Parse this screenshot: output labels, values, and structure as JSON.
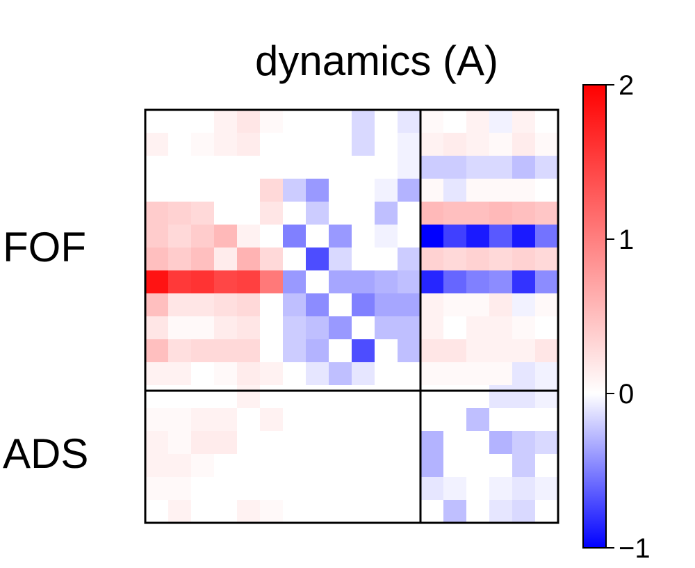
{
  "chart_data": {
    "type": "heatmap",
    "title": "dynamics (A)",
    "row_groups": [
      {
        "label": "FOF",
        "size": 12
      },
      {
        "label": "ADS",
        "size": 6
      }
    ],
    "col_groups": [
      {
        "label": "",
        "size": 12
      },
      {
        "label": "",
        "size": 6
      }
    ],
    "colorbar": {
      "vmin": -1,
      "vmax": 2,
      "ticks": [
        2,
        1,
        0,
        -1
      ],
      "tick_labels": [
        "2",
        "1",
        "0",
        "−1"
      ],
      "colormap": "bwr",
      "low_color": "#0000ff",
      "mid_color": "#ffffff",
      "high_color": "#ff0000"
    },
    "matrix": [
      [
        0,
        0,
        0,
        0.1,
        0.2,
        0.05,
        0,
        0,
        0,
        -0.15,
        0,
        -0.1,
        0.05,
        0,
        0.1,
        -0.05,
        0.1,
        0
      ],
      [
        0.1,
        0,
        0.05,
        0.1,
        0.15,
        0,
        0,
        0,
        0,
        -0.15,
        0,
        -0.05,
        0.1,
        0.15,
        0.1,
        0.05,
        0.15,
        0.05
      ],
      [
        0,
        0,
        0,
        0,
        0,
        0,
        0,
        0,
        0,
        0,
        0,
        -0.05,
        -0.2,
        -0.2,
        -0.15,
        -0.15,
        -0.25,
        -0.15
      ],
      [
        0,
        0,
        0,
        0,
        0,
        0.3,
        -0.2,
        -0.4,
        0,
        0,
        -0.05,
        -0.3,
        0.05,
        -0.1,
        0.05,
        0.05,
        0.05,
        0
      ],
      [
        0.4,
        0.35,
        0.3,
        0,
        0,
        0.2,
        0,
        -0.2,
        0,
        0,
        -0.25,
        0,
        0.55,
        0.5,
        0.5,
        0.55,
        0.5,
        0.45
      ],
      [
        0.4,
        0.3,
        0.4,
        0.55,
        0.1,
        0,
        -0.5,
        0,
        -0.4,
        0,
        -0.05,
        0,
        -1,
        -0.75,
        -0.9,
        -0.65,
        -0.9,
        -0.55
      ],
      [
        0.5,
        0.4,
        0.5,
        0.15,
        0.6,
        0.3,
        0,
        -0.7,
        -0.15,
        0,
        0,
        -0.2,
        0.35,
        0.3,
        0.35,
        0.3,
        0.35,
        0.3
      ],
      [
        1.85,
        1.55,
        1.6,
        1.45,
        1.5,
        1.05,
        -0.4,
        0,
        -0.35,
        -0.35,
        -0.3,
        -0.25,
        -0.85,
        -0.6,
        -0.5,
        -0.45,
        -0.8,
        -0.45
      ],
      [
        0.5,
        0.2,
        0.2,
        0.25,
        0.3,
        0,
        -0.25,
        -0.45,
        0,
        -0.5,
        -0.35,
        -0.35,
        0.1,
        0.05,
        0.05,
        0.15,
        -0.05,
        0.05
      ],
      [
        0.2,
        0.05,
        0.05,
        0.15,
        0.2,
        0,
        -0.2,
        -0.25,
        -0.4,
        0,
        -0.25,
        -0.25,
        0.1,
        0,
        0.1,
        0.1,
        0.05,
        0
      ],
      [
        0.5,
        0.25,
        0.3,
        0.3,
        0.3,
        0,
        -0.2,
        -0.3,
        0,
        -0.7,
        0,
        -0.25,
        0.2,
        0.2,
        0.1,
        0.1,
        0.1,
        0.2
      ],
      [
        0.1,
        0.1,
        0,
        0.05,
        0.15,
        0.1,
        0,
        -0.1,
        -0.25,
        -0.1,
        0,
        0,
        0.05,
        0.05,
        0.05,
        0.05,
        -0.1,
        -0.05
      ],
      [
        0,
        0,
        0,
        0,
        0.1,
        0,
        0,
        0,
        0,
        0,
        0,
        0,
        0,
        0,
        0,
        -0.1,
        -0.1,
        -0.05
      ],
      [
        0.05,
        0.05,
        0.1,
        0.1,
        0,
        0.1,
        0,
        0,
        0,
        0,
        0,
        0,
        0,
        0,
        -0.25,
        0,
        0,
        0
      ],
      [
        0.1,
        0.05,
        0.15,
        0.15,
        0,
        0,
        0,
        0,
        0,
        0,
        0,
        0,
        -0.3,
        0,
        0,
        -0.3,
        -0.2,
        -0.15
      ],
      [
        0.1,
        0.1,
        0.05,
        0,
        0,
        0,
        0,
        0,
        0,
        0,
        0,
        0,
        -0.3,
        0,
        0,
        0,
        -0.2,
        0
      ],
      [
        0.05,
        0.05,
        0,
        0,
        0,
        0,
        0,
        0,
        0,
        0,
        0,
        0,
        -0.1,
        -0.05,
        0,
        -0.05,
        -0.1,
        -0.05
      ],
      [
        0,
        0.1,
        0,
        0,
        0.1,
        0.05,
        0,
        0,
        0,
        0,
        0,
        0,
        0,
        -0.25,
        0,
        -0.1,
        -0.15,
        0
      ]
    ]
  }
}
